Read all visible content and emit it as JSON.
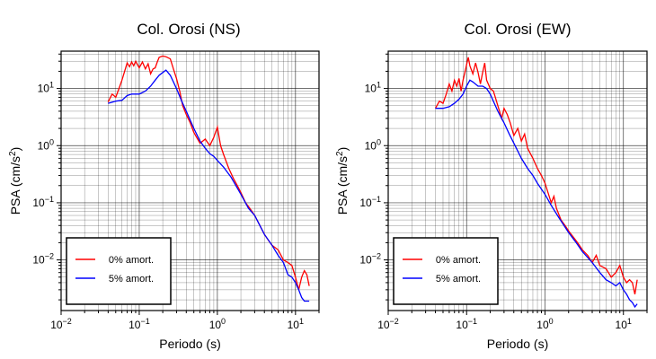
{
  "chart_data": [
    {
      "type": "line",
      "title": "Col. Orosi (NS)",
      "xlabel": "Periodo (s)",
      "ylabel": "PSA (cm/s²)",
      "x_scale": "log",
      "y_scale": "log",
      "xlim": [
        0.01,
        20
      ],
      "ylim": [
        0.0013,
        45
      ],
      "x_ticks": [
        {
          "value": 0.01,
          "base": "10",
          "exp": "−2"
        },
        {
          "value": 0.1,
          "base": "10",
          "exp": "−1"
        },
        {
          "value": 1,
          "base": "10",
          "exp": "0"
        },
        {
          "value": 10,
          "base": "10",
          "exp": "1"
        }
      ],
      "y_ticks": [
        {
          "value": 0.01,
          "base": "10",
          "exp": "−2"
        },
        {
          "value": 0.1,
          "base": "10",
          "exp": "−1"
        },
        {
          "value": 1,
          "base": "10",
          "exp": "0"
        },
        {
          "value": 10,
          "base": "10",
          "exp": "1"
        }
      ],
      "grid": true,
      "legend_position": "bottom-left",
      "series": [
        {
          "name": "0% amort.",
          "color": "#ff0000",
          "points": [
            [
              0.04,
              5.8
            ],
            [
              0.045,
              8
            ],
            [
              0.05,
              7
            ],
            [
              0.055,
              10
            ],
            [
              0.06,
              14
            ],
            [
              0.065,
              20
            ],
            [
              0.07,
              28
            ],
            [
              0.075,
              24
            ],
            [
              0.08,
              29
            ],
            [
              0.085,
              25
            ],
            [
              0.09,
              30
            ],
            [
              0.1,
              23
            ],
            [
              0.11,
              29
            ],
            [
              0.12,
              22
            ],
            [
              0.13,
              27
            ],
            [
              0.14,
              18
            ],
            [
              0.15,
              22
            ],
            [
              0.16,
              23
            ],
            [
              0.17,
              29
            ],
            [
              0.18,
              35
            ],
            [
              0.2,
              37
            ],
            [
              0.22,
              36
            ],
            [
              0.25,
              33
            ],
            [
              0.28,
              20
            ],
            [
              0.3,
              15
            ],
            [
              0.33,
              9
            ],
            [
              0.36,
              5
            ],
            [
              0.4,
              3.5
            ],
            [
              0.45,
              2.5
            ],
            [
              0.5,
              1.7
            ],
            [
              0.6,
              1.1
            ],
            [
              0.7,
              1.3
            ],
            [
              0.8,
              1.0
            ],
            [
              0.9,
              1.4
            ],
            [
              1.0,
              2.1
            ],
            [
              1.1,
              1.0
            ],
            [
              1.2,
              0.7
            ],
            [
              1.4,
              0.4
            ],
            [
              1.6,
              0.27
            ],
            [
              1.8,
              0.2
            ],
            [
              2.0,
              0.15
            ],
            [
              2.3,
              0.1
            ],
            [
              2.6,
              0.08
            ],
            [
              3.0,
              0.06
            ],
            [
              3.5,
              0.04
            ],
            [
              4.0,
              0.028
            ],
            [
              4.5,
              0.022
            ],
            [
              5,
              0.018
            ],
            [
              6,
              0.015
            ],
            [
              7,
              0.01
            ],
            [
              8,
              0.009
            ],
            [
              9,
              0.008
            ],
            [
              10,
              0.005
            ],
            [
              11,
              0.003
            ],
            [
              12,
              0.005
            ],
            [
              13,
              0.0065
            ],
            [
              14,
              0.0055
            ],
            [
              15,
              0.0035
            ]
          ]
        },
        {
          "name": "5% amort.",
          "color": "#0000ff",
          "points": [
            [
              0.04,
              5.5
            ],
            [
              0.05,
              6
            ],
            [
              0.06,
              6.2
            ],
            [
              0.07,
              7.5
            ],
            [
              0.08,
              8
            ],
            [
              0.1,
              8
            ],
            [
              0.12,
              9
            ],
            [
              0.14,
              11
            ],
            [
              0.16,
              14
            ],
            [
              0.18,
              17
            ],
            [
              0.2,
              19
            ],
            [
              0.22,
              21
            ],
            [
              0.25,
              17
            ],
            [
              0.3,
              10
            ],
            [
              0.35,
              6
            ],
            [
              0.4,
              4
            ],
            [
              0.5,
              2
            ],
            [
              0.6,
              1.2
            ],
            [
              0.7,
              0.9
            ],
            [
              0.8,
              0.72
            ],
            [
              0.9,
              0.65
            ],
            [
              1.0,
              0.55
            ],
            [
              1.2,
              0.42
            ],
            [
              1.5,
              0.28
            ],
            [
              2.0,
              0.14
            ],
            [
              2.5,
              0.08
            ],
            [
              3.0,
              0.06
            ],
            [
              3.5,
              0.04
            ],
            [
              4,
              0.028
            ],
            [
              5,
              0.018
            ],
            [
              6,
              0.012
            ],
            [
              7,
              0.009
            ],
            [
              8,
              0.0055
            ],
            [
              9,
              0.005
            ],
            [
              10,
              0.004
            ],
            [
              11,
              0.003
            ],
            [
              12,
              0.0022
            ],
            [
              13,
              0.0019
            ],
            [
              14,
              0.0019
            ],
            [
              15,
              0.0019
            ]
          ]
        }
      ]
    },
    {
      "type": "line",
      "title": "Col. Orosi (EW)",
      "xlabel": "Periodo (s)",
      "ylabel": "PSA (cm/s²)",
      "x_scale": "log",
      "y_scale": "log",
      "xlim": [
        0.01,
        20
      ],
      "ylim": [
        0.0013,
        45
      ],
      "x_ticks": [
        {
          "value": 0.01,
          "base": "10",
          "exp": "−2"
        },
        {
          "value": 0.1,
          "base": "10",
          "exp": "−1"
        },
        {
          "value": 1,
          "base": "10",
          "exp": "0"
        },
        {
          "value": 10,
          "base": "10",
          "exp": "1"
        }
      ],
      "y_ticks": [
        {
          "value": 0.01,
          "base": "10",
          "exp": "−2"
        },
        {
          "value": 0.1,
          "base": "10",
          "exp": "−1"
        },
        {
          "value": 1,
          "base": "10",
          "exp": "0"
        },
        {
          "value": 10,
          "base": "10",
          "exp": "1"
        }
      ],
      "grid": true,
      "legend_position": "bottom-left",
      "series": [
        {
          "name": "0% amort.",
          "color": "#ff0000",
          "points": [
            [
              0.04,
              4.5
            ],
            [
              0.045,
              6
            ],
            [
              0.05,
              5.5
            ],
            [
              0.055,
              8
            ],
            [
              0.06,
              12
            ],
            [
              0.065,
              9
            ],
            [
              0.07,
              14
            ],
            [
              0.075,
              11
            ],
            [
              0.08,
              15
            ],
            [
              0.085,
              9
            ],
            [
              0.09,
              14
            ],
            [
              0.095,
              19
            ],
            [
              0.1,
              26
            ],
            [
              0.105,
              35
            ],
            [
              0.11,
              25
            ],
            [
              0.12,
              18
            ],
            [
              0.13,
              28
            ],
            [
              0.14,
              19
            ],
            [
              0.15,
              12
            ],
            [
              0.16,
              19
            ],
            [
              0.17,
              28
            ],
            [
              0.18,
              14
            ],
            [
              0.2,
              10
            ],
            [
              0.22,
              9
            ],
            [
              0.25,
              5
            ],
            [
              0.28,
              3
            ],
            [
              0.3,
              4.5
            ],
            [
              0.33,
              3.5
            ],
            [
              0.36,
              2.5
            ],
            [
              0.4,
              1.5
            ],
            [
              0.45,
              2
            ],
            [
              0.5,
              1.2
            ],
            [
              0.55,
              1.6
            ],
            [
              0.6,
              0.9
            ],
            [
              0.7,
              0.6
            ],
            [
              0.8,
              0.4
            ],
            [
              0.9,
              0.3
            ],
            [
              1.0,
              0.22
            ],
            [
              1.2,
              0.1
            ],
            [
              1.3,
              0.13
            ],
            [
              1.4,
              0.08
            ],
            [
              1.6,
              0.05
            ],
            [
              1.8,
              0.04
            ],
            [
              2.0,
              0.032
            ],
            [
              2.3,
              0.025
            ],
            [
              2.6,
              0.02
            ],
            [
              3,
              0.015
            ],
            [
              3.5,
              0.012
            ],
            [
              4,
              0.009
            ],
            [
              4.5,
              0.012
            ],
            [
              5,
              0.008
            ],
            [
              6,
              0.007
            ],
            [
              7,
              0.005
            ],
            [
              8,
              0.006
            ],
            [
              9,
              0.008
            ],
            [
              10,
              0.005
            ],
            [
              11,
              0.004
            ],
            [
              12,
              0.0045
            ],
            [
              13,
              0.004
            ],
            [
              14,
              0.0025
            ],
            [
              15,
              0.0045
            ]
          ]
        },
        {
          "name": "5% amort.",
          "color": "#0000ff",
          "points": [
            [
              0.04,
              4.5
            ],
            [
              0.05,
              4.5
            ],
            [
              0.06,
              4.8
            ],
            [
              0.07,
              5.5
            ],
            [
              0.08,
              6.5
            ],
            [
              0.09,
              8
            ],
            [
              0.1,
              11
            ],
            [
              0.11,
              14
            ],
            [
              0.12,
              13
            ],
            [
              0.14,
              11
            ],
            [
              0.16,
              11
            ],
            [
              0.18,
              10
            ],
            [
              0.2,
              8
            ],
            [
              0.25,
              4
            ],
            [
              0.3,
              2.5
            ],
            [
              0.35,
              1.6
            ],
            [
              0.4,
              1.1
            ],
            [
              0.5,
              0.6
            ],
            [
              0.6,
              0.4
            ],
            [
              0.7,
              0.3
            ],
            [
              0.8,
              0.22
            ],
            [
              1.0,
              0.14
            ],
            [
              1.2,
              0.09
            ],
            [
              1.5,
              0.055
            ],
            [
              2.0,
              0.03
            ],
            [
              2.5,
              0.02
            ],
            [
              3,
              0.014
            ],
            [
              4,
              0.009
            ],
            [
              5,
              0.006
            ],
            [
              6,
              0.0045
            ],
            [
              7,
              0.004
            ],
            [
              8,
              0.0035
            ],
            [
              9,
              0.004
            ],
            [
              10,
              0.003
            ],
            [
              11,
              0.0025
            ],
            [
              12,
              0.002
            ],
            [
              13,
              0.0018
            ],
            [
              14,
              0.0015
            ],
            [
              15,
              0.0017
            ]
          ]
        }
      ]
    }
  ]
}
